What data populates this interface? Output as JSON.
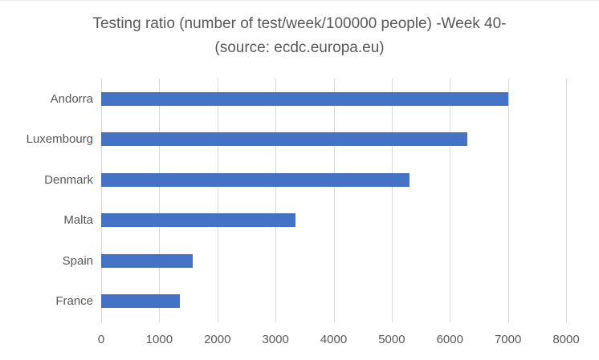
{
  "title": {
    "line1": "Testing ratio (number of test/week/100000 people) -Week 40-",
    "line2": "(source: ecdc.europa.eu)"
  },
  "chart_data": {
    "type": "bar",
    "orientation": "horizontal",
    "title": "Testing ratio (number of test/week/100000 people) -Week 40- (source: ecdc.europa.eu)",
    "categories": [
      "Andorra",
      "Luxembourg",
      "Denmark",
      "Malta",
      "Spain",
      "France"
    ],
    "values": [
      7000,
      6300,
      5300,
      3350,
      1580,
      1360
    ],
    "xlabel": "",
    "ylabel": "",
    "xlim": [
      0,
      8000
    ],
    "x_ticks": [
      0,
      1000,
      2000,
      3000,
      4000,
      5000,
      6000,
      7000,
      8000
    ],
    "grid": "vertical-only",
    "legend": "none",
    "bar_color": "#4472c4",
    "gridline_color": "#d9d9d9",
    "text_color": "#595959"
  }
}
